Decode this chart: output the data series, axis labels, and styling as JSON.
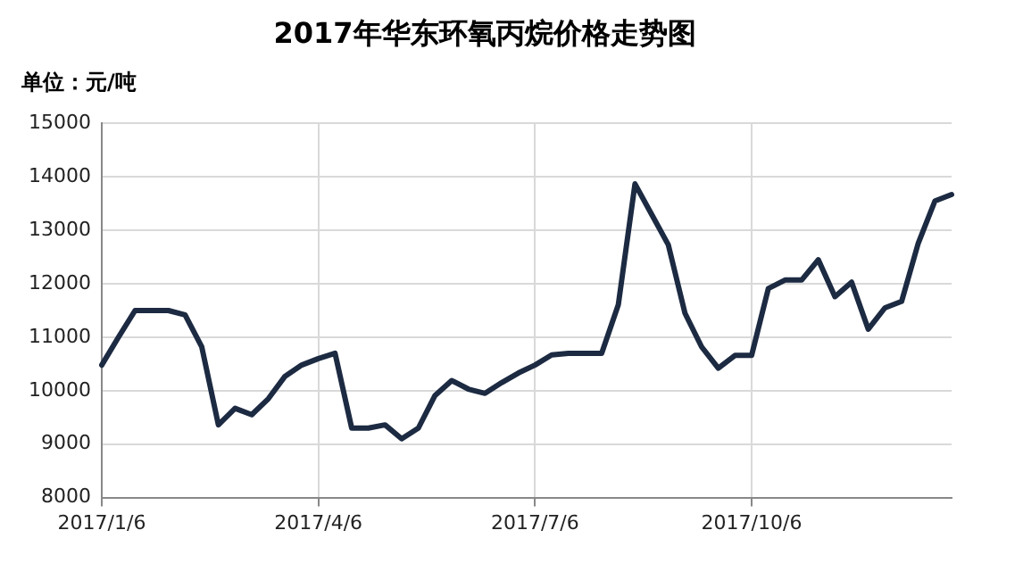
{
  "chart_data": {
    "type": "line",
    "title": "2017年华东环氧丙烷价格走势图",
    "ylabel": "单位：元/吨",
    "categories": [
      "2017/1/6",
      null,
      null,
      null,
      null,
      null,
      null,
      null,
      null,
      null,
      null,
      null,
      null,
      "2017/4/6",
      null,
      null,
      null,
      null,
      null,
      null,
      null,
      null,
      null,
      null,
      null,
      null,
      "2017/7/6",
      null,
      null,
      null,
      null,
      null,
      null,
      null,
      null,
      null,
      null,
      null,
      null,
      "2017/10/6",
      null,
      null,
      null,
      null,
      null,
      null,
      null,
      null,
      null,
      null,
      null,
      null
    ],
    "series": [
      {
        "color": "#1c2a42",
        "values": [
          10480,
          11000,
          11500,
          11500,
          11500,
          11420,
          10820,
          9360,
          9670,
          9550,
          9850,
          10270,
          10480,
          10600,
          10700,
          9300,
          9300,
          9360,
          9100,
          9300,
          9910,
          10190,
          10030,
          9950,
          10150,
          10330,
          10480,
          10670,
          10700,
          10700,
          10700,
          11610,
          13870,
          13300,
          12730,
          11450,
          10820,
          10420,
          10660,
          10660,
          11910,
          12070,
          12070,
          12450,
          11760,
          12030,
          11150,
          11550,
          11670,
          12760,
          13550,
          13670
        ]
      }
    ],
    "ylim": [
      8000,
      15000
    ],
    "yticks": [
      8000,
      9000,
      10000,
      11000,
      12000,
      13000,
      14000,
      15000
    ],
    "grid": true,
    "legend": false,
    "marker": "none",
    "line_style": "solid"
  }
}
